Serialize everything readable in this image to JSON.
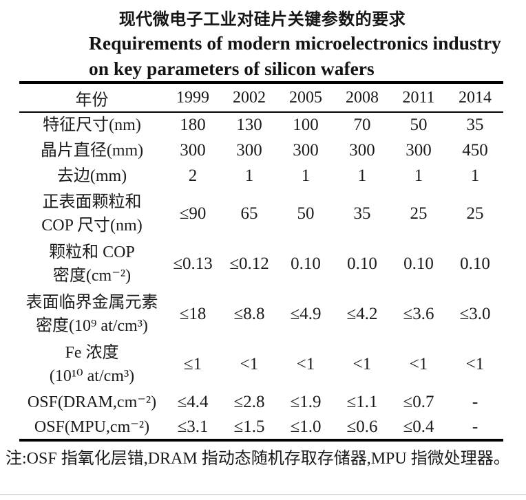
{
  "title": {
    "zh": "现代微电子工业对硅片关键参数的要求",
    "en_line1": "Requirements of modern microelectronics industry",
    "en_line2": "on key parameters of silicon wafers"
  },
  "table": {
    "header": [
      "年份",
      "1999",
      "2002",
      "2005",
      "2008",
      "2011",
      "2014"
    ],
    "rows": [
      {
        "label": "特征尺寸(nm)",
        "values": [
          "180",
          "130",
          "100",
          "70",
          "50",
          "35"
        ]
      },
      {
        "label": "晶片直径(mm)",
        "values": [
          "300",
          "300",
          "300",
          "300",
          "300",
          "450"
        ]
      },
      {
        "label": "去边(mm)",
        "values": [
          "2",
          "1",
          "1",
          "1",
          "1",
          "1"
        ]
      },
      {
        "label": "正表面颗粒和\nCOP 尺寸(nm)",
        "values": [
          "≤90",
          "65",
          "50",
          "35",
          "25",
          "25"
        ]
      },
      {
        "label": "颗粒和 COP\n密度(cm⁻²)",
        "values": [
          "≤0.13",
          "≤0.12",
          "0.10",
          "0.10",
          "0.10",
          "0.10"
        ]
      },
      {
        "label": "表面临界金属元素\n密度(10⁹ at/cm³)",
        "values": [
          "≤18",
          "≤8.8",
          "≤4.9",
          "≤4.2",
          "≤3.6",
          "≤3.0"
        ]
      },
      {
        "label": "Fe 浓度\n(10¹⁰ at/cm³)",
        "values": [
          "≤1",
          "<1",
          "<1",
          "<1",
          "<1",
          "<1"
        ]
      },
      {
        "label": "OSF(DRAM,cm⁻²)",
        "values": [
          "≤4.4",
          "≤2.8",
          "≤1.9",
          "≤1.1",
          "≤0.7",
          "-"
        ]
      },
      {
        "label": "OSF(MPU,cm⁻²)",
        "values": [
          "≤3.1",
          "≤1.5",
          "≤1.0",
          "≤0.6",
          "≤0.4",
          "-"
        ]
      }
    ]
  },
  "note": "注:OSF 指氧化层错,DRAM 指动态随机存取存储器,MPU 指微处理器。",
  "colors": {
    "background": "#ffffff",
    "text": "#1b1b1b",
    "rule": "#000000"
  }
}
